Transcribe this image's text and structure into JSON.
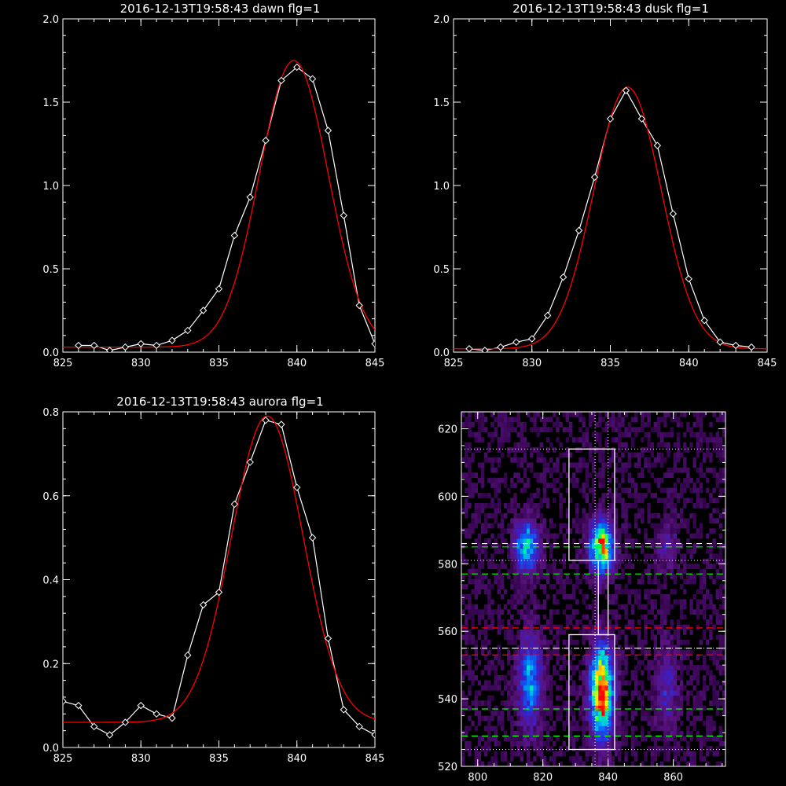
{
  "colors": {
    "background": "#000000",
    "data": "#ffffff",
    "fit": "#ff0000",
    "green_line": "#00ff00",
    "red_line": "#ff0000"
  },
  "chart_data": [
    {
      "type": "line",
      "title": "2016-12-13T19:58:43 dawn flg=1",
      "xlim": [
        825,
        845
      ],
      "ylim": [
        0,
        2.0
      ],
      "xticks": [
        825,
        830,
        835,
        840,
        845
      ],
      "xtick_labels": [
        "825",
        "830",
        "835",
        "840",
        "845"
      ],
      "yticks": [
        0,
        0.5,
        1.0,
        1.5,
        2.0
      ],
      "ytick_labels": [
        "0.0",
        "0.5",
        "1.0",
        "1.5",
        "2.0"
      ],
      "series": [
        {
          "role": "data",
          "marker": "diamond",
          "x": [
            826,
            827,
            828,
            829,
            830,
            831,
            832,
            833,
            834,
            835,
            836,
            837,
            838,
            839,
            840,
            841,
            842,
            843,
            844,
            845
          ],
          "y": [
            0.04,
            0.04,
            0.01,
            0.03,
            0.05,
            0.04,
            0.07,
            0.13,
            0.25,
            0.38,
            0.7,
            0.93,
            1.27,
            1.63,
            1.71,
            1.64,
            1.33,
            0.82,
            0.28,
            0.05
          ]
        },
        {
          "role": "fit",
          "model": "gaussian",
          "baseline": 0.03,
          "amplitude": 1.72,
          "center": 839.8,
          "sigma": 2.2
        }
      ]
    },
    {
      "type": "line",
      "title": "2016-12-13T19:58:43 dusk flg=1",
      "xlim": [
        825,
        845
      ],
      "ylim": [
        0,
        2.0
      ],
      "xticks": [
        825,
        830,
        835,
        840,
        845
      ],
      "xtick_labels": [
        "825",
        "830",
        "835",
        "840",
        "845"
      ],
      "yticks": [
        0,
        0.5,
        1.0,
        1.5,
        2.0
      ],
      "ytick_labels": [
        "0.0",
        "0.5",
        "1.0",
        "1.5",
        "2.0"
      ],
      "series": [
        {
          "role": "data",
          "marker": "diamond",
          "x": [
            826,
            827,
            828,
            829,
            830,
            831,
            832,
            833,
            834,
            835,
            836,
            837,
            838,
            839,
            840,
            841,
            842,
            843,
            844
          ],
          "y": [
            0.02,
            0.01,
            0.03,
            0.06,
            0.08,
            0.22,
            0.45,
            0.73,
            1.05,
            1.4,
            1.57,
            1.4,
            1.24,
            0.83,
            0.44,
            0.19,
            0.06,
            0.04,
            0.03
          ]
        },
        {
          "role": "fit",
          "model": "gaussian",
          "baseline": 0.02,
          "amplitude": 1.57,
          "center": 836.1,
          "sigma": 2.15
        }
      ]
    },
    {
      "type": "line",
      "title": "2016-12-13T19:58:43 aurora flg=1",
      "xlim": [
        825,
        845
      ],
      "ylim": [
        0,
        0.8
      ],
      "xticks": [
        825,
        830,
        835,
        840,
        845
      ],
      "xtick_labels": [
        "825",
        "830",
        "835",
        "840",
        "845"
      ],
      "yticks": [
        0,
        0.2,
        0.4,
        0.6,
        0.8
      ],
      "ytick_labels": [
        "0.0",
        "0.2",
        "0.4",
        "0.6",
        "0.8"
      ],
      "series": [
        {
          "role": "data",
          "marker": "diamond",
          "x": [
            825,
            826,
            827,
            828,
            829,
            830,
            831,
            832,
            833,
            834,
            835,
            836,
            837,
            838,
            839,
            840,
            841,
            842,
            843,
            844,
            845
          ],
          "y": [
            0.11,
            0.1,
            0.05,
            0.03,
            0.06,
            0.1,
            0.08,
            0.07,
            0.22,
            0.34,
            0.37,
            0.58,
            0.68,
            0.78,
            0.77,
            0.62,
            0.5,
            0.26,
            0.09,
            0.05,
            0.03
          ]
        },
        {
          "role": "fit",
          "model": "gaussian",
          "baseline": 0.06,
          "amplitude": 0.73,
          "center": 838.1,
          "sigma": 2.3
        }
      ]
    },
    {
      "type": "heatmap",
      "xlim": [
        795,
        876
      ],
      "ylim": [
        520,
        625
      ],
      "xticks": [
        800,
        820,
        840,
        860
      ],
      "xtick_labels": [
        "800",
        "820",
        "840",
        "860"
      ],
      "yticks": [
        520,
        540,
        560,
        580,
        600,
        620
      ],
      "ytick_labels": [
        "520",
        "540",
        "560",
        "580",
        "600",
        "620"
      ],
      "bright_regions": [
        {
          "x": 815,
          "y": 585,
          "level": 0.55
        },
        {
          "x": 838,
          "y": 585,
          "level": 0.85
        },
        {
          "x": 816,
          "y": 545,
          "level": 0.45
        },
        {
          "x": 838,
          "y": 542,
          "level": 0.95
        },
        {
          "x": 858,
          "y": 585,
          "level": 0.15
        },
        {
          "x": 858,
          "y": 543,
          "level": 0.2
        }
      ],
      "boxes": [
        {
          "x": [
            828,
            842
          ],
          "y": [
            581,
            614
          ]
        },
        {
          "x": [
            828,
            842
          ],
          "y": [
            525,
            559
          ]
        }
      ],
      "connector": {
        "x": [
          837,
          840
        ],
        "y": [
          559,
          581
        ]
      },
      "vertical_dotted_x": [
        836,
        840
      ],
      "horizontal_dotted_y": [
        614,
        581,
        555,
        525
      ],
      "horizontal_dashed": [
        {
          "y": 585,
          "color": "#00ff00"
        },
        {
          "y": 577,
          "color": "#00ff00"
        },
        {
          "y": 561,
          "color": "#ff0000"
        },
        {
          "y": 553,
          "color": "#ff0000"
        },
        {
          "y": 537,
          "color": "#00ff00"
        },
        {
          "y": 529,
          "color": "#00ff00"
        }
      ],
      "white_dashed_y": [
        586,
        555
      ]
    }
  ]
}
